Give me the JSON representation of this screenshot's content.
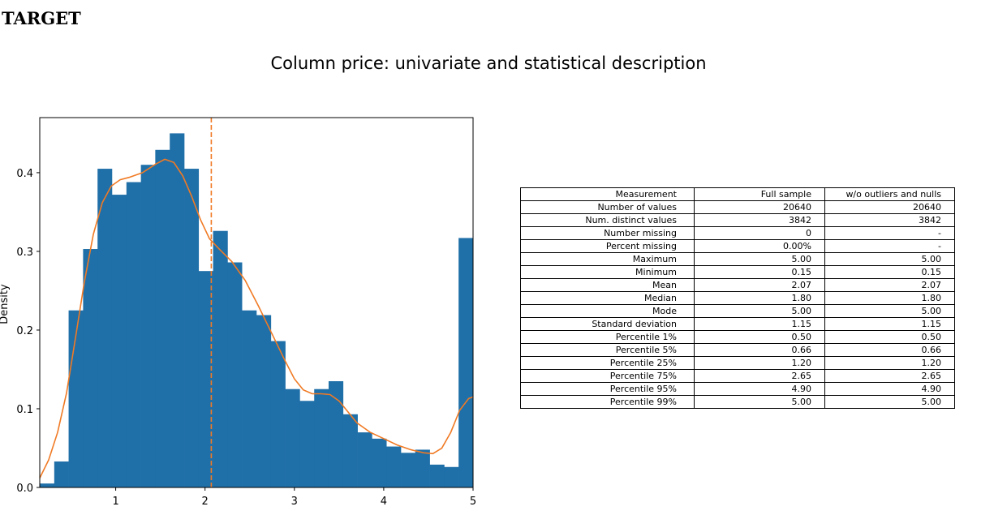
{
  "heading": "TARGET",
  "chart_data": {
    "type": "bar",
    "title": "Column price: univariate and statistical description",
    "xlabel": "",
    "ylabel": "Density",
    "xlim": [
      0.15,
      5.0
    ],
    "ylim": [
      0,
      0.47
    ],
    "xticks": [
      "1",
      "2",
      "3",
      "4",
      "5"
    ],
    "yticks": [
      "0.0",
      "0.1",
      "0.2",
      "0.3",
      "0.4"
    ],
    "bin_edges": [
      0.15,
      0.312,
      0.473,
      0.635,
      0.797,
      0.958,
      1.12,
      1.282,
      1.443,
      1.605,
      1.767,
      1.928,
      2.09,
      2.252,
      2.413,
      2.575,
      2.737,
      2.898,
      3.06,
      3.222,
      3.383,
      3.545,
      3.707,
      3.868,
      4.03,
      4.192,
      4.353,
      4.515,
      4.677,
      4.838,
      5.0
    ],
    "values": [
      0.005,
      0.033,
      0.225,
      0.303,
      0.405,
      0.372,
      0.388,
      0.41,
      0.429,
      0.45,
      0.405,
      0.275,
      0.326,
      0.286,
      0.225,
      0.219,
      0.186,
      0.125,
      0.11,
      0.125,
      0.135,
      0.093,
      0.07,
      0.062,
      0.052,
      0.044,
      0.048,
      0.029,
      0.026,
      0.317
    ],
    "bar_color": "#1f6fa8",
    "kde": {
      "x": [
        0.15,
        0.25,
        0.35,
        0.45,
        0.55,
        0.65,
        0.75,
        0.85,
        0.95,
        1.05,
        1.15,
        1.3,
        1.45,
        1.55,
        1.65,
        1.75,
        1.85,
        1.95,
        2.05,
        2.15,
        2.3,
        2.45,
        2.6,
        2.75,
        2.9,
        3.0,
        3.1,
        3.2,
        3.3,
        3.4,
        3.5,
        3.6,
        3.7,
        3.85,
        4.0,
        4.15,
        4.3,
        4.45,
        4.55,
        4.65,
        4.75,
        4.85,
        4.95,
        5.0
      ],
      "y": [
        0.012,
        0.035,
        0.07,
        0.12,
        0.19,
        0.262,
        0.322,
        0.362,
        0.383,
        0.391,
        0.394,
        0.4,
        0.411,
        0.417,
        0.413,
        0.396,
        0.37,
        0.34,
        0.316,
        0.304,
        0.287,
        0.263,
        0.23,
        0.195,
        0.16,
        0.138,
        0.124,
        0.119,
        0.119,
        0.118,
        0.11,
        0.096,
        0.082,
        0.07,
        0.062,
        0.054,
        0.048,
        0.044,
        0.043,
        0.05,
        0.07,
        0.098,
        0.113,
        0.115
      ],
      "color": "#f07a24"
    },
    "mean_line": {
      "x": 2.07,
      "color": "#f07a24"
    }
  },
  "table": {
    "header": [
      "Measurement",
      "Full sample",
      "w/o outliers and nulls"
    ],
    "rows": [
      [
        "Number of values",
        "20640",
        "20640"
      ],
      [
        "Num. distinct values",
        "3842",
        "3842"
      ],
      [
        "Number missing",
        "0",
        "-"
      ],
      [
        "Percent missing",
        "0.00%",
        "-"
      ],
      [
        "Maximum",
        "5.00",
        "5.00"
      ],
      [
        "Minimum",
        "0.15",
        "0.15"
      ],
      [
        "Mean",
        "2.07",
        "2.07"
      ],
      [
        "Median",
        "1.80",
        "1.80"
      ],
      [
        "Mode",
        "5.00",
        "5.00"
      ],
      [
        "Standard deviation",
        "1.15",
        "1.15"
      ],
      [
        "Percentile 1%",
        "0.50",
        "0.50"
      ],
      [
        "Percentile 5%",
        "0.66",
        "0.66"
      ],
      [
        "Percentile 25%",
        "1.20",
        "1.20"
      ],
      [
        "Percentile 75%",
        "2.65",
        "2.65"
      ],
      [
        "Percentile 95%",
        "4.90",
        "4.90"
      ],
      [
        "Percentile 99%",
        "5.00",
        "5.00"
      ]
    ]
  }
}
